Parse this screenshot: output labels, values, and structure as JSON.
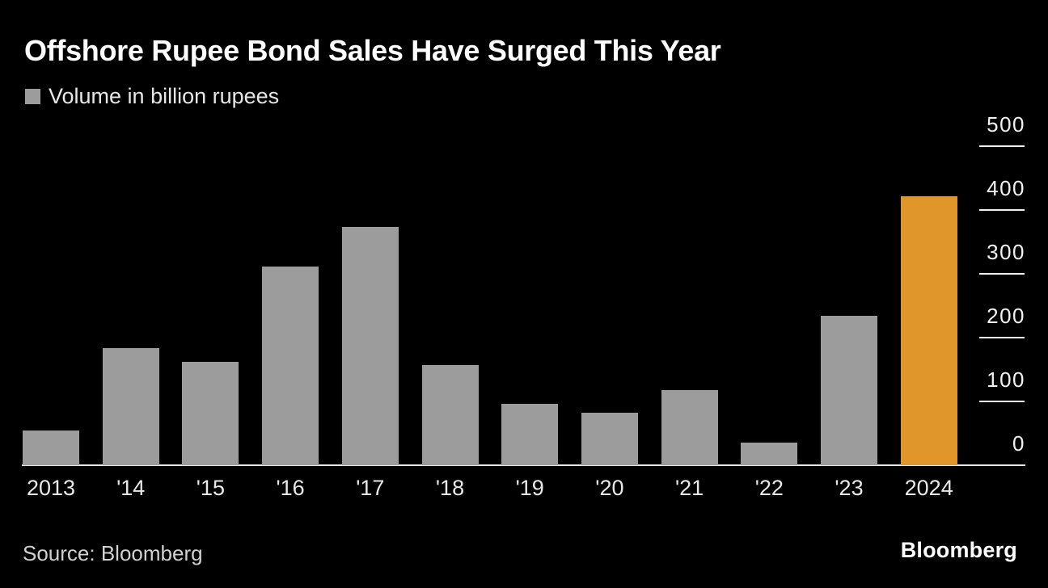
{
  "chart_data": {
    "type": "bar",
    "title": "Offshore Rupee Bond Sales Have Surged This Year",
    "legend_label": "Volume in billion rupees",
    "categories": [
      "2013",
      "'14",
      "'15",
      "'16",
      "'17",
      "'18",
      "'19",
      "'20",
      "'21",
      "'22",
      "'23",
      "2024"
    ],
    "values": [
      55,
      183,
      162,
      311,
      374,
      157,
      96,
      82,
      118,
      35,
      234,
      421
    ],
    "highlight_index": 11,
    "bar_color": "#9C9C9C",
    "highlight_color": "#E0962B",
    "background_color": "#000000",
    "axis_color": "#F2F2F2",
    "ylim": [
      0,
      500
    ],
    "yticks": [
      0,
      100,
      200,
      300,
      400,
      500
    ],
    "y_axis_side": "right",
    "grid": false,
    "legend_position": "top-left"
  },
  "footer": {
    "source_label": "Source: Bloomberg",
    "logo_text": "Bloomberg"
  }
}
